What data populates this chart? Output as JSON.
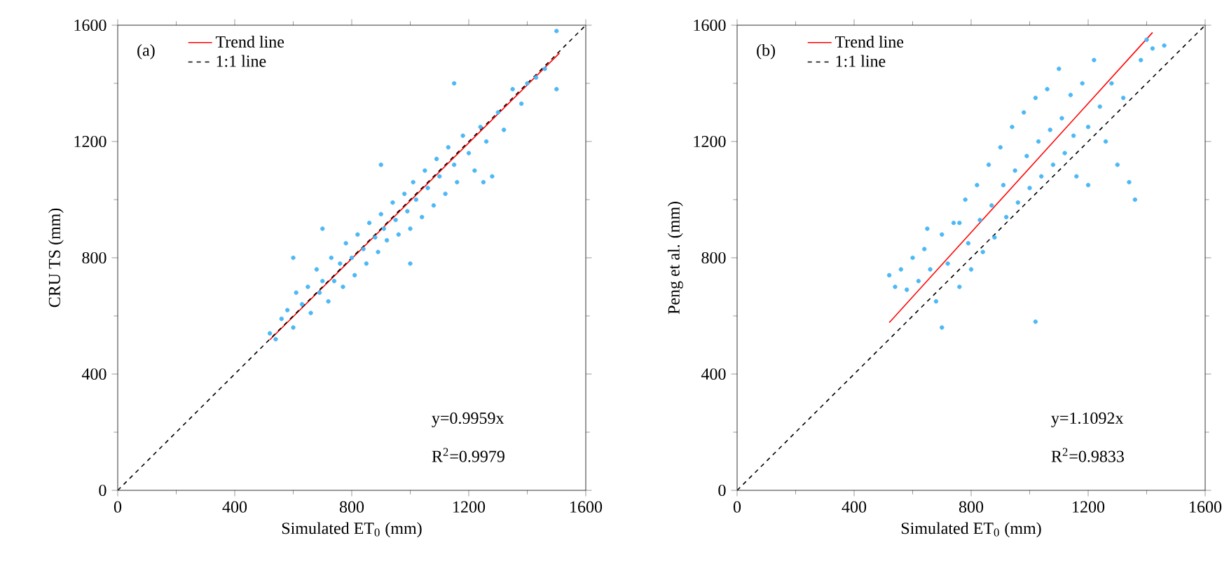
{
  "chart_data": [
    {
      "type": "scatter",
      "xlabel": "Simulated ET$_{0}$ (mm)",
      "ylabel": "CRU TS (mm)",
      "xlim": [
        0,
        1600
      ],
      "ylim": [
        0,
        1600
      ],
      "xticks": [
        0,
        400,
        800,
        1200,
        1600
      ],
      "yticks": [
        0,
        400,
        800,
        1200,
        1600
      ],
      "legend": "top left",
      "annotations": [
        "(a)",
        "y=0.9959x",
        "R$^{2}$=0.9979"
      ],
      "series": [
        {
          "color": "#4db8f5",
          "x": [
            520,
            540,
            560,
            580,
            600,
            610,
            630,
            650,
            660,
            680,
            690,
            700,
            720,
            730,
            740,
            760,
            770,
            780,
            800,
            810,
            820,
            840,
            850,
            860,
            880,
            890,
            900,
            910,
            920,
            940,
            950,
            960,
            980,
            990,
            1000,
            1010,
            1020,
            1040,
            1050,
            1060,
            1080,
            1090,
            1100,
            1120,
            1130,
            1150,
            1160,
            1180,
            1200,
            1220,
            1240,
            1260,
            1280,
            1300,
            1320,
            1350,
            1380,
            1400,
            1430,
            1460,
            1500,
            1500,
            700,
            600,
            1150,
            1250,
            900,
            1000
          ],
          "values": [
            540,
            520,
            590,
            620,
            560,
            680,
            640,
            700,
            610,
            760,
            680,
            720,
            650,
            800,
            720,
            780,
            700,
            850,
            800,
            740,
            880,
            830,
            780,
            920,
            870,
            820,
            950,
            900,
            860,
            990,
            930,
            880,
            1020,
            960,
            900,
            1060,
            1000,
            940,
            1100,
            1040,
            980,
            1140,
            1080,
            1020,
            1180,
            1120,
            1060,
            1220,
            1160,
            1100,
            1250,
            1200,
            1080,
            1300,
            1240,
            1380,
            1330,
            1400,
            1420,
            1450,
            1580,
            1380,
            900,
            800,
            1400,
            1060,
            1120,
            780
          ]
        },
        {
          "type": "line",
          "name": "Trend line",
          "color": "#ff0000",
          "marker": "none",
          "line_style": "solid",
          "x": [
            520,
            1510
          ],
          "values": [
            518,
            1504
          ]
        },
        {
          "type": "line",
          "name": "1:1 line",
          "color": "#000000",
          "marker": "none",
          "line_style": "dashed",
          "x": [
            0,
            1600
          ],
          "values": [
            0,
            1600
          ]
        }
      ]
    },
    {
      "type": "scatter",
      "xlabel": "Simulated ET$_{0}$ (mm)",
      "ylabel": "Peng et al. (mm)",
      "xlim": [
        0,
        1600
      ],
      "ylim": [
        0,
        1600
      ],
      "xticks": [
        0,
        400,
        800,
        1200,
        1600
      ],
      "yticks": [
        0,
        400,
        800,
        1200,
        1600
      ],
      "legend": "top left",
      "annotations": [
        "(b)",
        "y=1.1092x",
        "R$^{2}$=0.9833"
      ],
      "series": [
        {
          "color": "#4db8f5",
          "x": [
            520,
            540,
            560,
            580,
            600,
            620,
            640,
            660,
            680,
            700,
            700,
            720,
            740,
            760,
            780,
            790,
            800,
            820,
            830,
            840,
            860,
            870,
            880,
            900,
            910,
            920,
            940,
            950,
            960,
            980,
            990,
            1000,
            1020,
            1030,
            1040,
            1020,
            1060,
            1070,
            1080,
            1100,
            1110,
            1120,
            1140,
            1150,
            1160,
            1180,
            1200,
            1220,
            1240,
            1260,
            1280,
            1300,
            1320,
            1340,
            1360,
            1380,
            1400,
            1420,
            1460,
            760,
            650,
            1200
          ],
          "values": [
            740,
            700,
            760,
            690,
            800,
            720,
            830,
            760,
            650,
            880,
            560,
            780,
            920,
            700,
            1000,
            850,
            760,
            1050,
            930,
            820,
            1120,
            980,
            870,
            1180,
            1050,
            940,
            1250,
            1100,
            990,
            1300,
            1150,
            1040,
            1350,
            1200,
            1080,
            580,
            1380,
            1240,
            1120,
            1450,
            1280,
            1160,
            1360,
            1220,
            1080,
            1400,
            1250,
            1480,
            1320,
            1200,
            1400,
            1120,
            1350,
            1060,
            1000,
            1480,
            1550,
            1520,
            1530,
            920,
            900,
            1050
          ]
        },
        {
          "type": "line",
          "name": "Trend line",
          "color": "#ff0000",
          "marker": "none",
          "line_style": "solid",
          "x": [
            520,
            1420
          ],
          "values": [
            577,
            1575
          ]
        },
        {
          "type": "line",
          "name": "1:1 line",
          "color": "#000000",
          "marker": "none",
          "line_style": "dashed",
          "x": [
            0,
            1600
          ],
          "values": [
            0,
            1600
          ]
        }
      ]
    }
  ]
}
